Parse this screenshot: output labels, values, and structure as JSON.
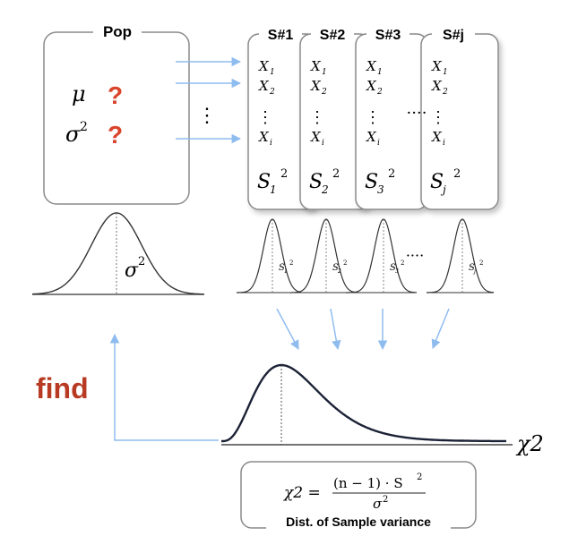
{
  "population": {
    "title": "Pop",
    "mu_symbol": "μ",
    "sigma_symbol": "σ",
    "sigma_exp": "2",
    "question_mark": "?",
    "dots": "⋮",
    "curve_label": "σ",
    "curve_label_exp": "2"
  },
  "samples": [
    {
      "title": "S#1",
      "x1": "X",
      "x1_sub": "1",
      "x2": "X",
      "x2_sub": "2",
      "xi": "X",
      "xi_sub": "i",
      "var": "S",
      "var_sub": "1",
      "var_exp": "2"
    },
    {
      "title": "S#2",
      "x1": "X",
      "x1_sub": "1",
      "x2": "X",
      "x2_sub": "2",
      "xi": "X",
      "xi_sub": "i",
      "var": "S",
      "var_sub": "2",
      "var_exp": "2"
    },
    {
      "title": "S#3",
      "x1": "X",
      "x1_sub": "1",
      "x2": "X",
      "x2_sub": "2",
      "xi": "X",
      "xi_sub": "i",
      "var": "S",
      "var_sub": "3",
      "var_exp": "2"
    },
    {
      "title": "S#j",
      "x1": "X",
      "x1_sub": "1",
      "x2": "X",
      "x2_sub": "2",
      "xi": "X",
      "xi_sub": "i",
      "var": "S",
      "var_sub": "j",
      "var_exp": "2"
    }
  ],
  "sample_ellipsis": "····",
  "curve_ellipsis": "····",
  "find_label": "find",
  "chi_axis_label": "χ2",
  "formula": {
    "lhs": "χ2 =",
    "numerator": "(n − 1) · S",
    "numerator_exp": "2",
    "denominator": "σ",
    "denominator_exp": "2",
    "caption": "Dist. of Sample variance"
  },
  "colors": {
    "arrow": "#8fbcef",
    "question": "#d9442c",
    "find": "#b83a23",
    "box_stroke": "#8a8a8a",
    "curve": "#333333",
    "chi_curve": "#1c2236"
  }
}
